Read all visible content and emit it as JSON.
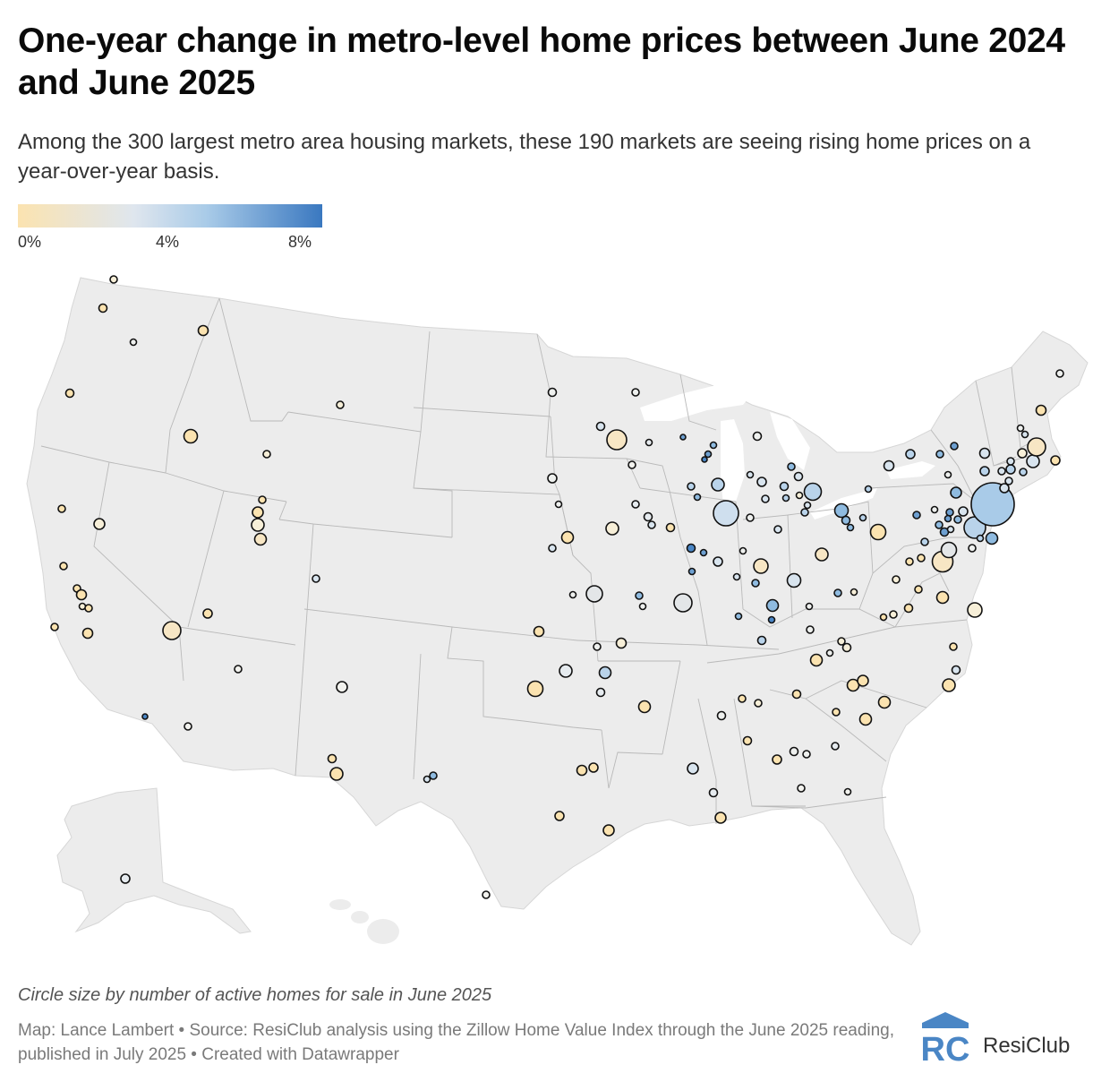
{
  "title": "One-year change in metro-level home prices between June 2024 and June 2025",
  "subtitle": "Among the 300 largest metro area housing markets, these 190 markets are seeing rising home prices on a year-over-year basis.",
  "legend": {
    "ticks": [
      "0%",
      "4%",
      "8%"
    ],
    "colors": [
      "#fbe3b0",
      "#dfe6ee",
      "#a9cbe8",
      "#3a78c0"
    ]
  },
  "note": "Circle size by number of active homes for sale in June 2025",
  "source": "Map: Lance Lambert • Source: ResiClub analysis using the Zillow Home Value Index through the June 2025 reading, published in July 2025 • Created with Datawrapper",
  "brand": {
    "logo_mark": "RC",
    "name": "ResiClub"
  },
  "colors": {
    "land": "#ececec",
    "state_border": "#b9b9b9",
    "marker_stroke": "#111111"
  }
}
